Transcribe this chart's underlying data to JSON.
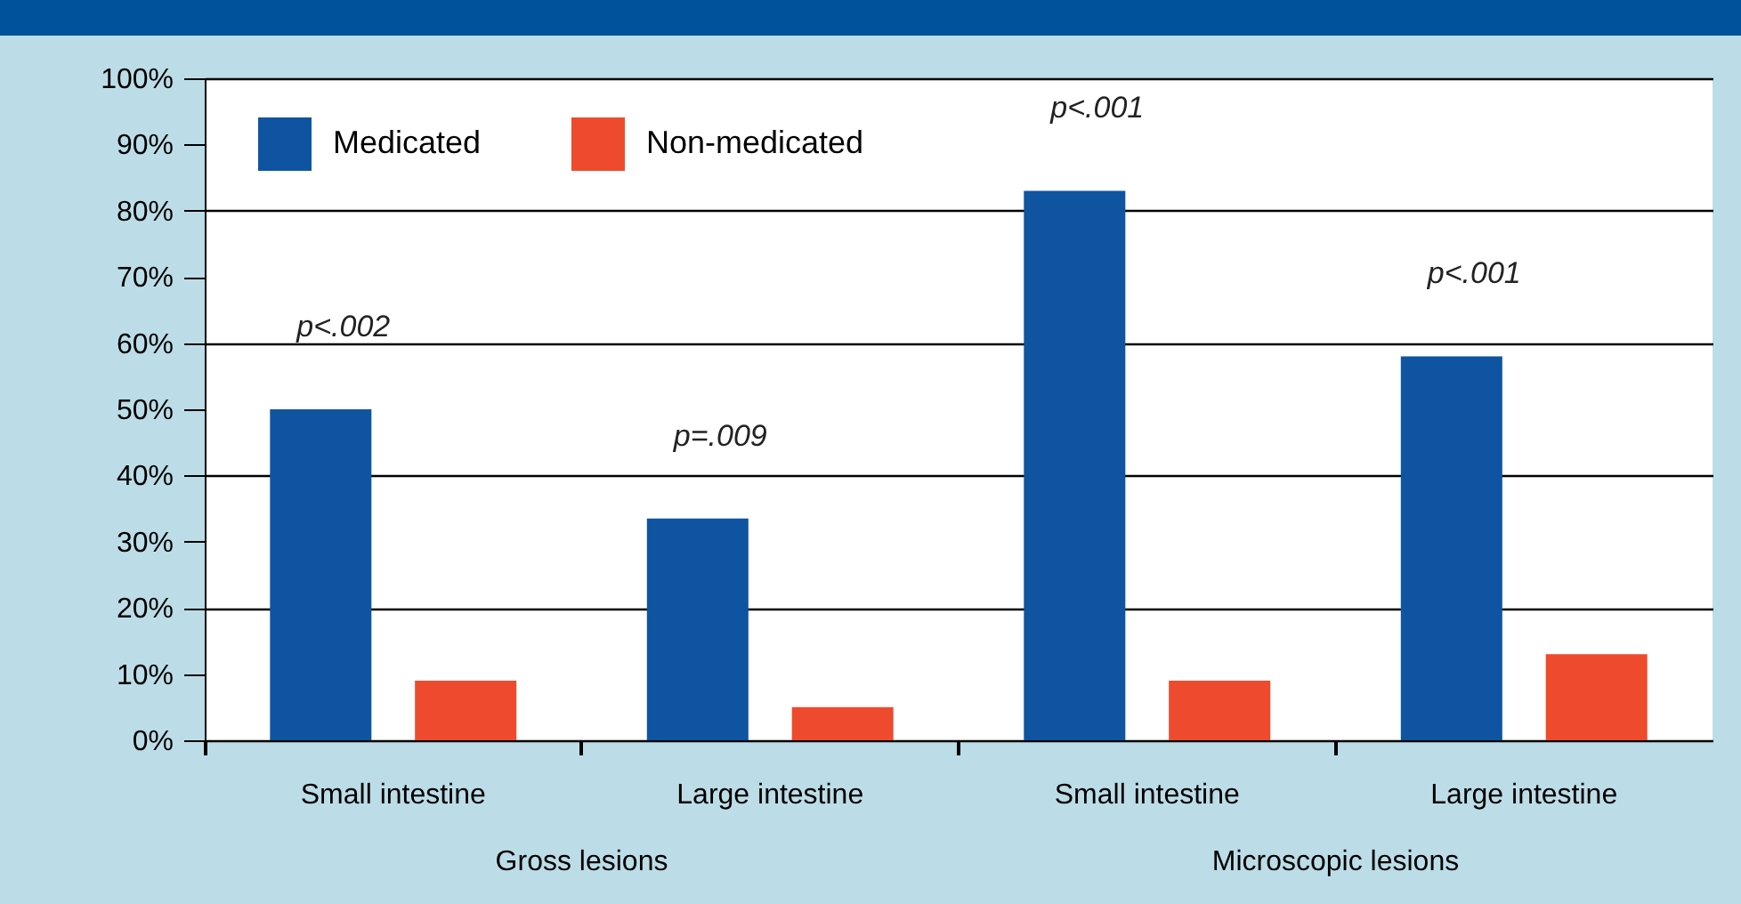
{
  "chart_data": {
    "type": "bar",
    "categories": [
      "Small intestine",
      "Large intestine",
      "Small intestine",
      "Large intestine"
    ],
    "series": [
      {
        "name": "Medicated",
        "color": "#0f54a0",
        "values": [
          50,
          33.5,
          83,
          58
        ]
      },
      {
        "name": "Non-medicated",
        "color": "#ee4a2e",
        "values": [
          9,
          5,
          9,
          13
        ]
      }
    ],
    "ylim": [
      0,
      100
    ],
    "yticks": [
      {
        "value": 0,
        "label": "0%"
      },
      {
        "value": 10,
        "label": "10%"
      },
      {
        "value": 20,
        "label": "20%"
      },
      {
        "value": 30,
        "label": "30%"
      },
      {
        "value": 40,
        "label": "40%"
      },
      {
        "value": 50,
        "label": "50%"
      },
      {
        "value": 60,
        "label": "60%"
      },
      {
        "value": 70,
        "label": "70%"
      },
      {
        "value": 80,
        "label": "80%"
      },
      {
        "value": 90,
        "label": "90%"
      },
      {
        "value": 100,
        "label": "100%"
      }
    ],
    "annotations": [
      "p<.002",
      "p=.009",
      "p<.001",
      "p<.001",
      "Gross lesions",
      "Microscopic lesions"
    ],
    "grid": "y",
    "legend": "top left"
  }
}
